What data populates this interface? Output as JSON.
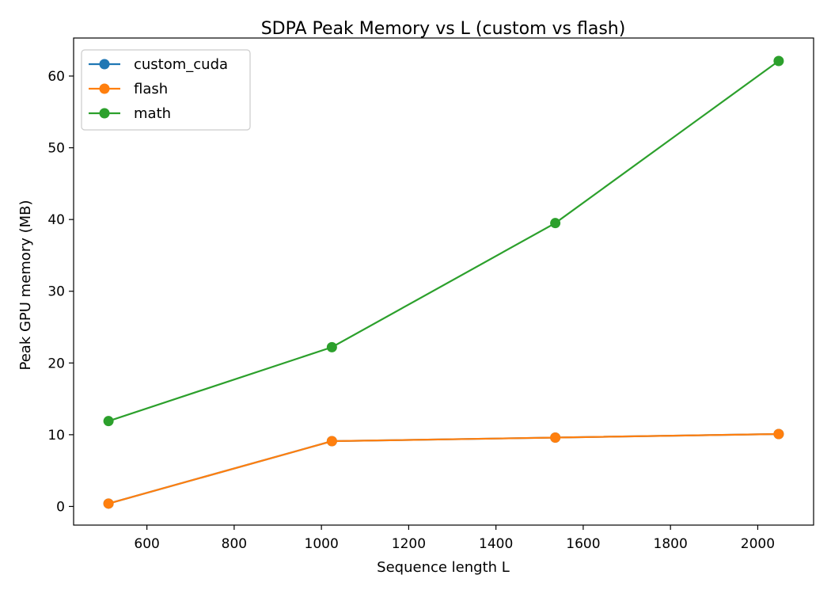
{
  "chart_data": {
    "type": "line",
    "title": "SDPA Peak Memory vs L (custom vs flash)",
    "xlabel": "Sequence length L",
    "ylabel": "Peak GPU memory (MB)",
    "x": [
      512,
      1024,
      1536,
      2048
    ],
    "xlim": [
      432,
      2128
    ],
    "ylim": [
      -2.6,
      65.3
    ],
    "xticks": [
      600,
      800,
      1000,
      1200,
      1400,
      1600,
      1800,
      2000
    ],
    "yticks": [
      0,
      10,
      20,
      30,
      40,
      50,
      60
    ],
    "grid": false,
    "legend_position": "top-left",
    "series": [
      {
        "name": "custom_cuda",
        "color": "#1f77b4",
        "values": [
          0.4,
          9.1,
          9.6,
          10.1
        ]
      },
      {
        "name": "flash",
        "color": "#ff7f0e",
        "values": [
          0.4,
          9.1,
          9.6,
          10.1
        ]
      },
      {
        "name": "math",
        "color": "#2ca02c",
        "values": [
          11.9,
          22.2,
          39.5,
          62.1
        ]
      }
    ]
  }
}
